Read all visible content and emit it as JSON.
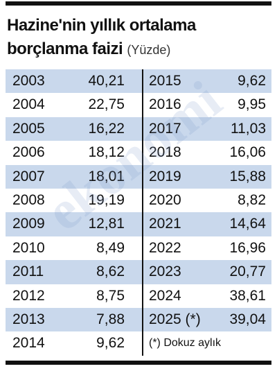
{
  "header": {
    "title": "Hazine'nin yıllık ortalama borçlanma faizi",
    "subtitle": "(Yüzde)"
  },
  "table": {
    "left": [
      [
        "2003",
        "40,21"
      ],
      [
        "2004",
        "22,75"
      ],
      [
        "2005",
        "16,22"
      ],
      [
        "2006",
        "18,12"
      ],
      [
        "2007",
        "18,01"
      ],
      [
        "2008",
        "19,19"
      ],
      [
        "2009",
        "12,81"
      ],
      [
        "2010",
        "8,49"
      ],
      [
        "2011",
        "8,62"
      ],
      [
        "2012",
        "8,75"
      ],
      [
        "2013",
        "7,88"
      ],
      [
        "2014",
        "9,62"
      ]
    ],
    "right": [
      [
        "2015",
        "9,62"
      ],
      [
        "2016",
        "9,95"
      ],
      [
        "2017",
        "11,03"
      ],
      [
        "2018",
        "16,06"
      ],
      [
        "2019",
        "15,88"
      ],
      [
        "2020",
        "8,82"
      ],
      [
        "2021",
        "14,64"
      ],
      [
        "2022",
        "16,96"
      ],
      [
        "2023",
        "20,77"
      ],
      [
        "2024",
        "38,61"
      ],
      [
        "2025 (*)",
        "39,04"
      ]
    ],
    "footnote": "(*) Dokuz aylık"
  },
  "watermark": "ekonomi"
}
